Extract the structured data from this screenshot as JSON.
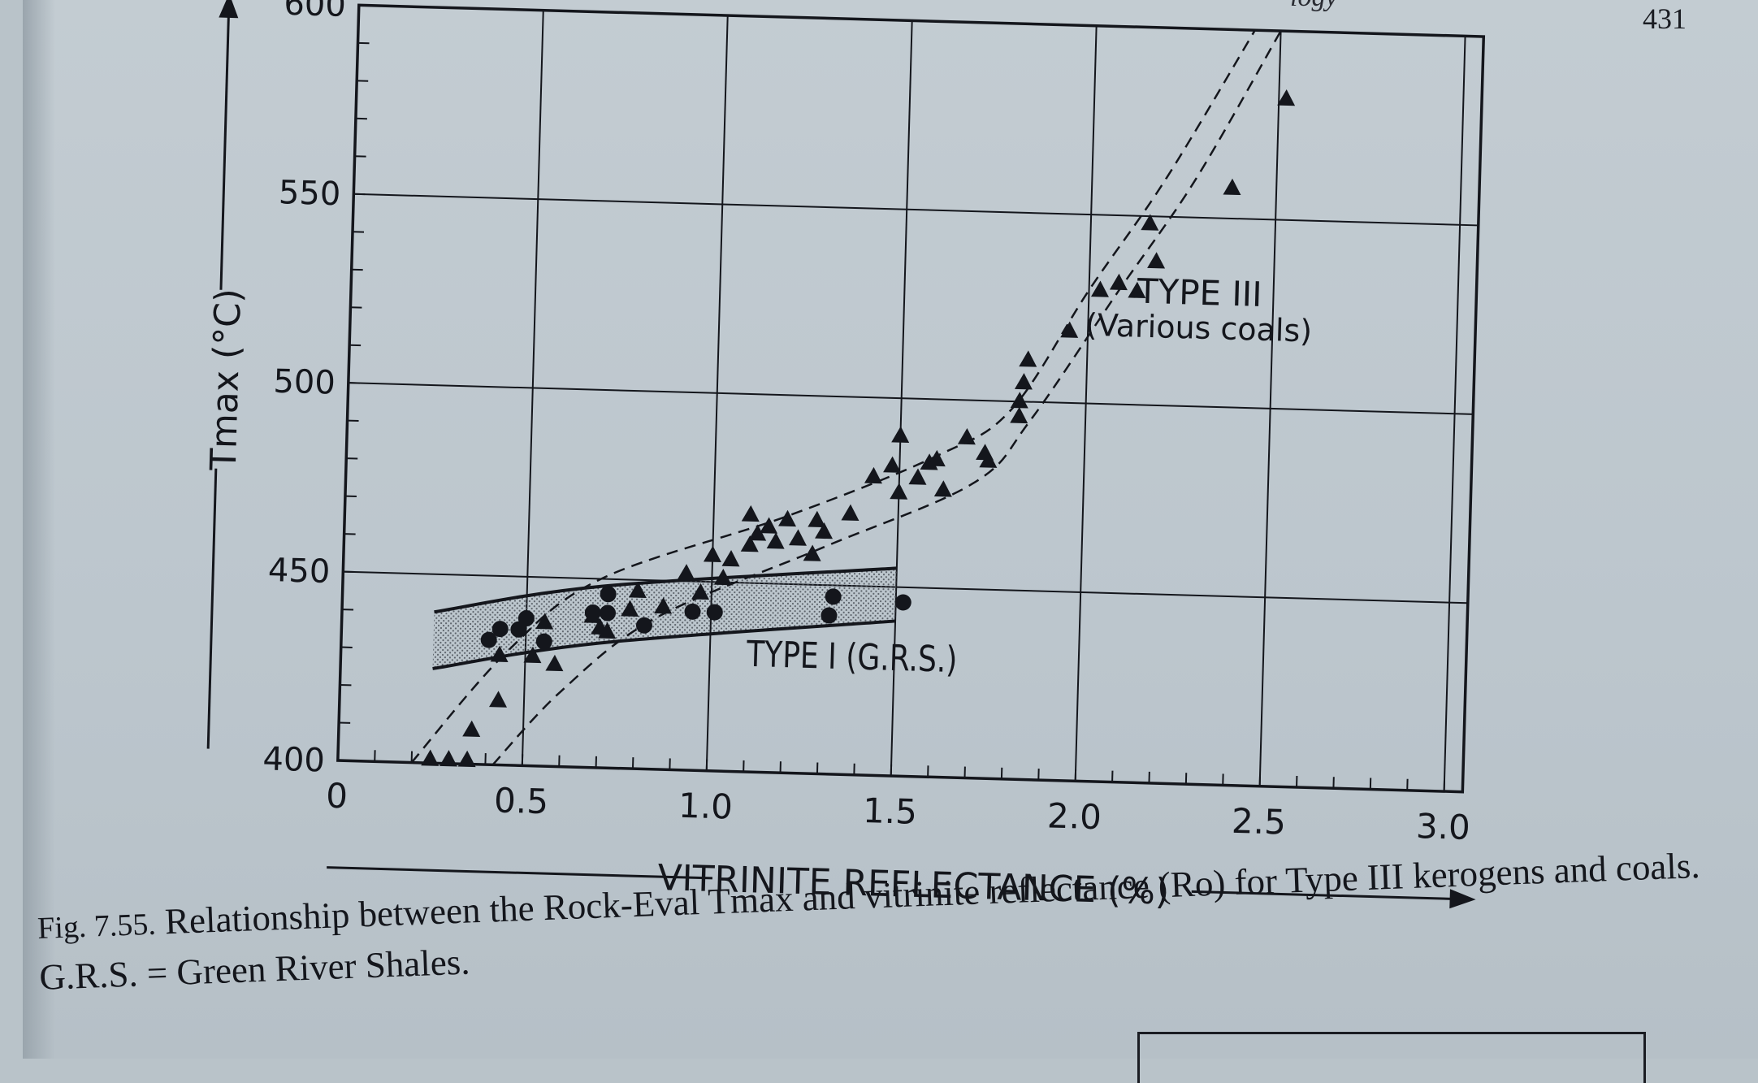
{
  "page": {
    "number": "431",
    "header_fragment": "logy"
  },
  "caption": {
    "lead": "Fig. 7.55.",
    "text": "Relationship between the Rock-Eval Tmax and vitrinite reflectance (Ro) for Type III kerogens and coals. G.R.S. = Green River Shales."
  },
  "chart_data": {
    "type": "scatter",
    "title": "",
    "xlabel": "VITRINITE REFLECTANCE (%)",
    "ylabel": "Tmax (°C)",
    "xlim": [
      0,
      3.05
    ],
    "ylim": [
      400,
      600
    ],
    "x_ticks": [
      "0",
      "0.5",
      "1.0",
      "1.5",
      "2.0",
      "2.5",
      "3.0"
    ],
    "x_tick_values": [
      0,
      0.5,
      1.0,
      1.5,
      2.0,
      2.5,
      3.0
    ],
    "y_ticks": [
      "400",
      "450",
      "500",
      "550",
      "600"
    ],
    "y_tick_values": [
      400,
      450,
      500,
      550,
      600
    ],
    "grid": true,
    "annotations": [
      {
        "text": "TYPE I (G.R.S.)",
        "x": 1.1,
        "y": 428
      },
      {
        "text": "TYPE III",
        "x": 2.3,
        "y": 527
      },
      {
        "text": "(Various coals)",
        "x": 2.3,
        "y": 518
      }
    ],
    "series": [
      {
        "name": "TYPE III (Various coals)",
        "marker": "triangle",
        "points": [
          [
            0.25,
            401
          ],
          [
            0.3,
            401
          ],
          [
            0.35,
            401
          ],
          [
            0.36,
            409
          ],
          [
            0.43,
            417
          ],
          [
            0.43,
            429
          ],
          [
            0.52,
            429
          ],
          [
            0.58,
            427
          ],
          [
            0.55,
            438
          ],
          [
            0.68,
            440
          ],
          [
            0.7,
            437
          ],
          [
            0.72,
            436
          ],
          [
            0.8,
            447
          ],
          [
            0.78,
            442
          ],
          [
            0.87,
            443
          ],
          [
            0.93,
            452
          ],
          [
            0.97,
            447
          ],
          [
            1.0,
            457
          ],
          [
            1.03,
            451
          ],
          [
            1.05,
            456
          ],
          [
            1.1,
            468
          ],
          [
            1.1,
            460
          ],
          [
            1.12,
            463
          ],
          [
            1.15,
            465
          ],
          [
            1.17,
            461
          ],
          [
            1.2,
            467
          ],
          [
            1.23,
            462
          ],
          [
            1.27,
            458
          ],
          [
            1.28,
            467
          ],
          [
            1.3,
            464
          ],
          [
            1.37,
            469
          ],
          [
            1.43,
            479
          ],
          [
            1.48,
            482
          ],
          [
            1.5,
            475
          ],
          [
            1.5,
            490
          ],
          [
            1.55,
            479
          ],
          [
            1.58,
            483
          ],
          [
            1.6,
            484
          ],
          [
            1.62,
            476
          ],
          [
            1.68,
            490
          ],
          [
            1.73,
            486
          ],
          [
            1.74,
            484
          ],
          [
            1.82,
            496
          ],
          [
            1.82,
            500
          ],
          [
            1.83,
            505
          ],
          [
            1.84,
            511
          ],
          [
            1.95,
            519
          ],
          [
            2.03,
            530
          ],
          [
            2.08,
            532
          ],
          [
            2.13,
            530
          ],
          [
            2.16,
            548
          ],
          [
            2.18,
            538
          ],
          [
            2.38,
            558
          ],
          [
            2.52,
            582
          ]
        ]
      },
      {
        "name": "TYPE I (G.R.S.)",
        "marker": "circle",
        "points": [
          [
            0.4,
            433
          ],
          [
            0.43,
            436
          ],
          [
            0.48,
            436
          ],
          [
            0.5,
            439
          ],
          [
            0.55,
            433
          ],
          [
            0.68,
            441
          ],
          [
            0.72,
            441
          ],
          [
            0.72,
            446
          ],
          [
            0.82,
            438
          ],
          [
            0.95,
            442
          ],
          [
            1.01,
            442
          ],
          [
            1.32,
            442
          ],
          [
            1.33,
            447
          ],
          [
            1.52,
            446
          ]
        ]
      }
    ],
    "bands": [
      {
        "name": "TYPE I (G.R.S.) band",
        "fill": "stippled",
        "upper": [
          [
            0.25,
            440
          ],
          [
            0.7,
            448
          ],
          [
            1.5,
            455
          ]
        ],
        "lower": [
          [
            0.25,
            425
          ],
          [
            0.7,
            433
          ],
          [
            1.5,
            441
          ]
        ]
      }
    ],
    "envelope": {
      "name": "TYPE III (Various coals) envelope",
      "style": "dashed",
      "left": [
        [
          0.2,
          400
        ],
        [
          0.45,
          430
        ],
        [
          0.7,
          450
        ],
        [
          1.2,
          468
        ],
        [
          1.6,
          485
        ],
        [
          1.8,
          498
        ],
        [
          2.0,
          530
        ],
        [
          2.2,
          560
        ],
        [
          2.43,
          600
        ]
      ],
      "right": [
        [
          0.42,
          400
        ],
        [
          0.6,
          420
        ],
        [
          0.85,
          440
        ],
        [
          1.3,
          460
        ],
        [
          1.7,
          478
        ],
        [
          1.85,
          495
        ],
        [
          2.08,
          530
        ],
        [
          2.28,
          560
        ],
        [
          2.5,
          600
        ]
      ]
    },
    "colors": {
      "ink": "#14161c",
      "paper": "#c0c9cf",
      "stipple": "#5a6068"
    }
  }
}
